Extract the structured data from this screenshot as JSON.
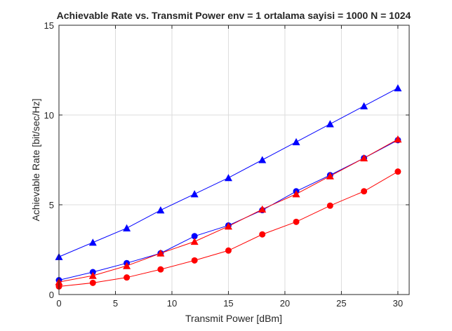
{
  "chart_data": {
    "type": "line",
    "title": "Achievable Rate vs. Transmit Power  env = 1 ortalama sayisi = 1000 N = 1024",
    "xlabel": "Transmit Power [dBm]",
    "ylabel": "Achievable Rate [bit/sec/Hz]",
    "xlim": [
      0,
      31
    ],
    "ylim": [
      0,
      15
    ],
    "xticks": [
      0,
      5,
      10,
      15,
      20,
      25,
      30
    ],
    "yticks": [
      0,
      5,
      10,
      15
    ],
    "grid": true,
    "x": [
      0,
      3,
      6,
      9,
      12,
      15,
      18,
      21,
      24,
      27,
      30
    ],
    "series": [
      {
        "color": "#0000ff",
        "marker": "triangle",
        "values": [
          2.1,
          2.9,
          3.7,
          4.7,
          5.6,
          6.5,
          7.5,
          8.5,
          9.5,
          10.5,
          11.5
        ]
      },
      {
        "color": "#0000ff",
        "marker": "circle",
        "values": [
          0.8,
          1.25,
          1.75,
          2.3,
          3.25,
          3.85,
          4.7,
          5.75,
          6.65,
          7.6,
          8.6
        ]
      },
      {
        "color": "#ff0000",
        "marker": "triangle",
        "values": [
          0.7,
          1.05,
          1.6,
          2.3,
          2.95,
          3.8,
          4.75,
          5.6,
          6.6,
          7.6,
          8.65
        ]
      },
      {
        "color": "#ff0000",
        "marker": "circle",
        "values": [
          0.45,
          0.65,
          0.95,
          1.4,
          1.9,
          2.45,
          3.35,
          4.05,
          4.95,
          5.75,
          6.85
        ]
      }
    ]
  }
}
